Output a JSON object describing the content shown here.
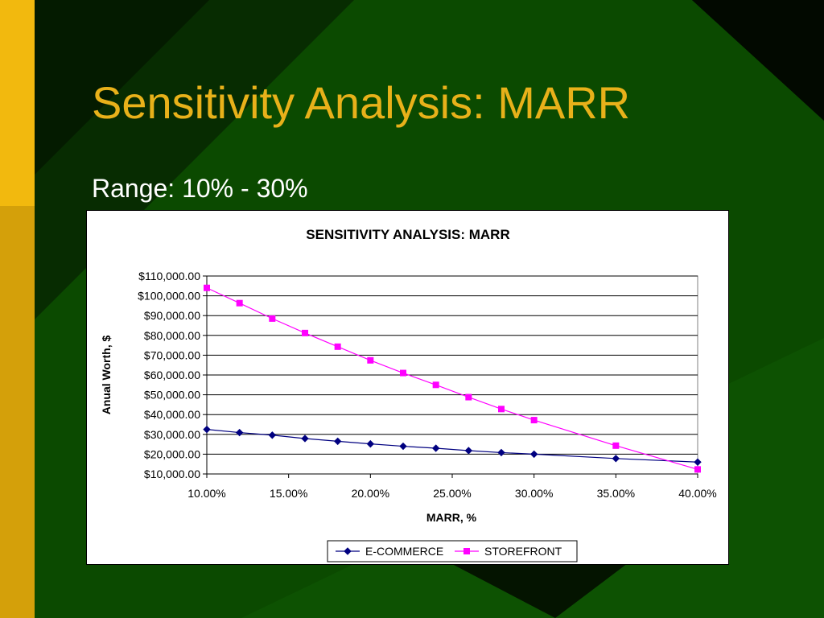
{
  "slide": {
    "title": "Sensitivity Analysis: MARR",
    "subtitle": "Range: 10% - 30%",
    "title_color": "#e8b11a",
    "background_color": "#0b4a00",
    "accent_bar_color": "#e8b11a"
  },
  "chart_data": {
    "type": "line",
    "title": "SENSITIVITY ANALYSIS: MARR",
    "xlabel": "MARR, %",
    "ylabel": "Anual Worth, $",
    "x_ticks": [
      "10.00%",
      "15.00%",
      "20.00%",
      "25.00%",
      "30.00%",
      "35.00%",
      "40.00%"
    ],
    "y_ticks": [
      "$10,000.00",
      "$20,000.00",
      "$30,000.00",
      "$40,000.00",
      "$50,000.00",
      "$60,000.00",
      "$70,000.00",
      "$80,000.00",
      "$90,000.00",
      "$100,000.00",
      "$110,000.00"
    ],
    "xlim": [
      10,
      40
    ],
    "ylim": [
      10000,
      110000
    ],
    "grid": "horizontal",
    "legend_position": "bottom",
    "series": [
      {
        "name": "E-COMMERCE",
        "color": "#000080",
        "marker": "diamond",
        "x": [
          10,
          12,
          14,
          16,
          18,
          20,
          22,
          24,
          26,
          28,
          30,
          35,
          40
        ],
        "values": [
          32500,
          30900,
          29600,
          27900,
          26500,
          25200,
          24000,
          23000,
          21800,
          20800,
          20000,
          17800,
          16000
        ]
      },
      {
        "name": "STOREFRONT",
        "color": "#ff00ff",
        "marker": "square",
        "x": [
          10,
          12,
          14,
          16,
          18,
          20,
          22,
          24,
          26,
          28,
          30,
          35,
          40
        ],
        "values": [
          104000,
          96300,
          88500,
          81200,
          74300,
          67400,
          61000,
          55000,
          48800,
          42800,
          37200,
          24300,
          12300
        ]
      }
    ]
  }
}
